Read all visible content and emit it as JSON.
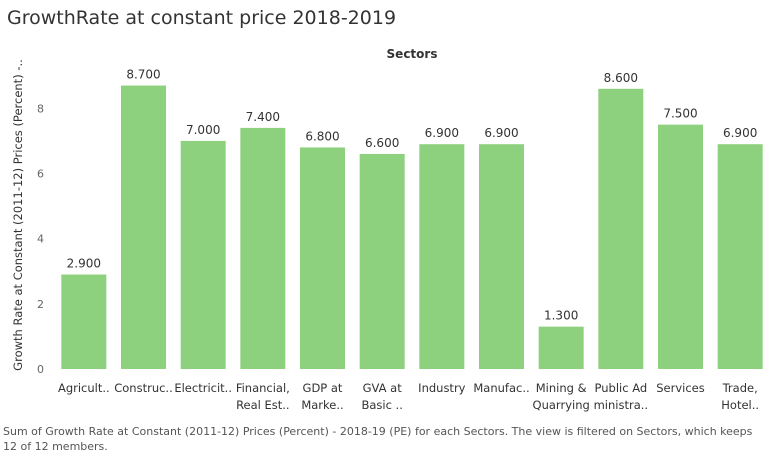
{
  "title": "GrowthRate at constant price 2018-2019",
  "caption": "Sum of Growth Rate at Constant (2011-12) Prices (Percent) - 2018-19 (PE) for each Sectors. The view is filtered on Sectors, which keeps 12 of 12 members.",
  "colors": {
    "bar": "#8DD17E",
    "axis_text": "#666666",
    "label_text": "#333333"
  },
  "chart_data": {
    "type": "bar",
    "title": "GrowthRate at constant price 2018-2019",
    "column_header": "Sectors",
    "ylabel": "Growth Rate at Constant (2011-12) Prices (Percent) -..",
    "ylim": [
      0,
      9.3
    ],
    "yticks": [
      0,
      2,
      4,
      6,
      8
    ],
    "grid": false,
    "categories": [
      [
        "Agricult.."
      ],
      [
        "Construc.."
      ],
      [
        "Electricit.."
      ],
      [
        "Financial,",
        "Real Est.."
      ],
      [
        "GDP at",
        "Marke.."
      ],
      [
        "GVA at",
        "Basic .."
      ],
      [
        "Industry"
      ],
      [
        "Manufac.."
      ],
      [
        "Mining &",
        "Quarrying"
      ],
      [
        "Public Ad",
        "ministra.."
      ],
      [
        "Services"
      ],
      [
        "Trade,",
        "Hotel.."
      ]
    ],
    "values": [
      2.9,
      8.7,
      7.0,
      7.4,
      6.8,
      6.6,
      6.9,
      6.9,
      1.3,
      8.6,
      7.5,
      6.9
    ],
    "data_labels": [
      "2.900",
      "8.700",
      "7.000",
      "7.400",
      "6.800",
      "6.600",
      "6.900",
      "6.900",
      "1.300",
      "8.600",
      "7.500",
      "6.900"
    ]
  }
}
